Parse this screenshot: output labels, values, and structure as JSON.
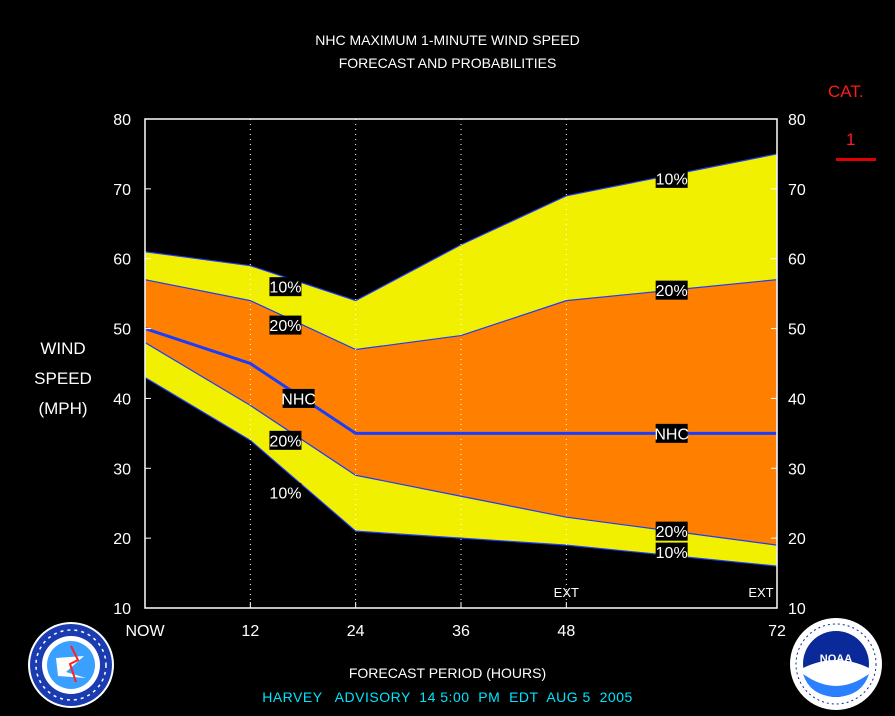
{
  "header": {
    "title_line1": "NHC MAXIMUM 1-MINUTE WIND SPEED",
    "title_line2": "FORECAST AND PROBABILITIES"
  },
  "category": {
    "label": "CAT.",
    "value": "1",
    "color": "#e00000"
  },
  "y_axis_title": [
    "WIND",
    "SPEED",
    "(MPH)"
  ],
  "x_axis_title": "FORECAST PERIOD (HOURS)",
  "footer": "HARVEY   ADVISORY  14 5:00  PM  EDT  AUG 5  2005",
  "colors": {
    "outer_band": "#f0f000",
    "inner_band": "#ff8000",
    "nhc_line": "#1a3cff",
    "frame": "#ffffff",
    "background": "#000000",
    "footer_text": "#00e5ff"
  },
  "chart_data": {
    "type": "area",
    "title": "NHC MAXIMUM 1-MINUTE WIND SPEED FORECAST AND PROBABILITIES",
    "xlabel": "FORECAST PERIOD (HOURS)",
    "ylabel": "WIND SPEED (MPH)",
    "x": [
      0,
      12,
      24,
      36,
      48,
      60,
      72
    ],
    "xlim": [
      0,
      72
    ],
    "ylim": [
      10,
      80
    ],
    "x_ticks": [
      {
        "value": 0,
        "label": "NOW"
      },
      {
        "value": 12,
        "label": "12"
      },
      {
        "value": 24,
        "label": "24"
      },
      {
        "value": 36,
        "label": "36"
      },
      {
        "value": 48,
        "label": "48"
      },
      {
        "value": 72,
        "label": "72"
      }
    ],
    "y_ticks": [
      10,
      20,
      30,
      40,
      50,
      60,
      70,
      80
    ],
    "grid": "vertical dotted at 12, 24, 36, 48",
    "ext_labels": [
      {
        "x": 48,
        "label": "EXT"
      },
      {
        "x": 72,
        "label": "EXT"
      }
    ],
    "series": [
      {
        "name": "10%",
        "role": "upper",
        "x": [
          0,
          12,
          24,
          36,
          48,
          60,
          72
        ],
        "values": [
          61,
          59,
          54,
          62,
          69,
          72,
          75
        ]
      },
      {
        "name": "20%",
        "role": "upper",
        "x": [
          0,
          12,
          24,
          36,
          48,
          60,
          72
        ],
        "values": [
          57,
          54,
          47,
          49,
          54,
          55.5,
          57
        ]
      },
      {
        "name": "NHC",
        "role": "forecast",
        "x": [
          0,
          12,
          24,
          36,
          48,
          60,
          72
        ],
        "values": [
          50,
          45,
          35,
          35,
          35,
          35,
          35
        ]
      },
      {
        "name": "20%",
        "role": "lower",
        "x": [
          0,
          12,
          24,
          36,
          48,
          60,
          72
        ],
        "values": [
          48,
          39,
          29,
          26,
          23,
          21,
          19
        ]
      },
      {
        "name": "10%",
        "role": "lower",
        "x": [
          0,
          12,
          24,
          36,
          48,
          60,
          72
        ],
        "values": [
          43,
          34,
          21,
          20,
          19,
          17.5,
          16
        ]
      }
    ],
    "annotations": [
      {
        "text": "10%",
        "x": 16,
        "y": 56
      },
      {
        "text": "20%",
        "x": 16,
        "y": 50.5
      },
      {
        "text": "NHC",
        "x": 17.5,
        "y": 40
      },
      {
        "text": "20%",
        "x": 16,
        "y": 34
      },
      {
        "text": "10%",
        "x": 16,
        "y": 26.5
      },
      {
        "text": "10%",
        "x": 60,
        "y": 71.5
      },
      {
        "text": "20%",
        "x": 60,
        "y": 55.5
      },
      {
        "text": "NHC",
        "x": 60,
        "y": 35
      },
      {
        "text": "20%",
        "x": 60,
        "y": 21
      },
      {
        "text": "10%",
        "x": 60,
        "y": 18
      }
    ]
  }
}
